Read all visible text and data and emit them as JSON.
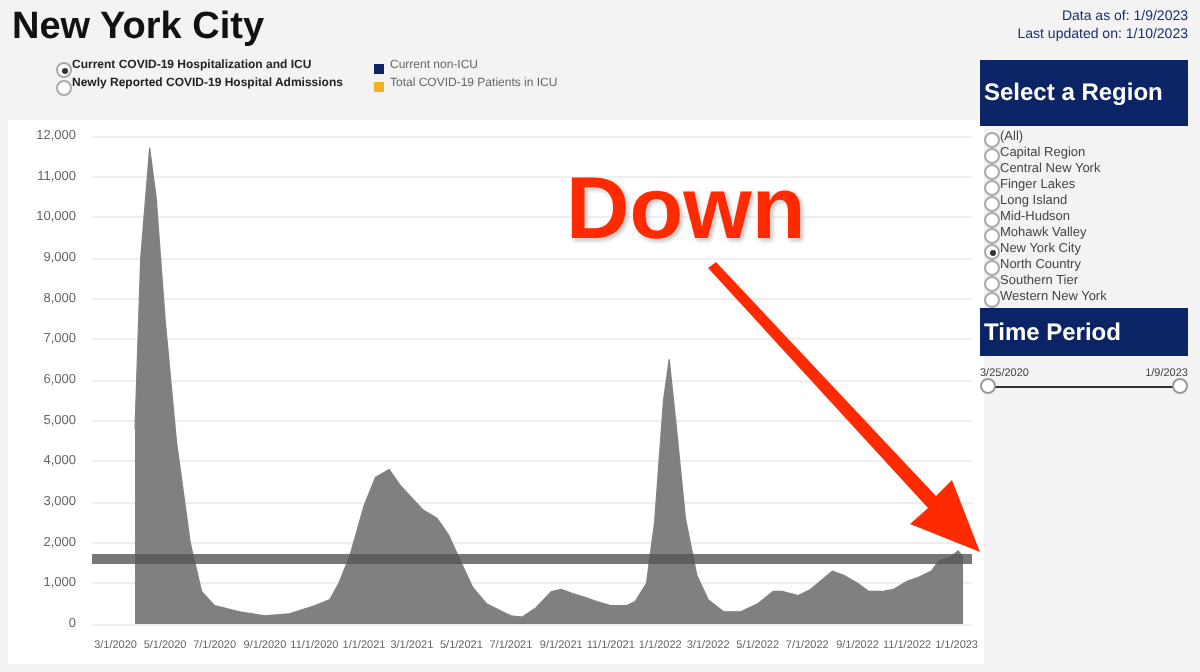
{
  "chart_data": {
    "type": "area",
    "title": "New York City",
    "annotations": [
      "Data as of: 1/9/2023",
      "Last updated on: 1/10/2023",
      "Current COVID-19 Hospitalization and ICU",
      "Newly Reported COVID-19 Hospital Admissions",
      "Current non-ICU",
      "Total COVID-19 Patients in ICU",
      "Select a Region",
      "(All)",
      "Capital Region",
      "Central New York",
      "Finger Lakes",
      "Long Island",
      "Mid-Hudson",
      "Mohawk Valley",
      "New York City",
      "North Country",
      "Southern Tier",
      "Western New York",
      "Time Period",
      "3/25/2020",
      "1/9/2023",
      "Down"
    ],
    "x": [
      "2020-03-25",
      "2020-04-01",
      "2020-04-12",
      "2020-04-20",
      "2020-05-01",
      "2020-05-15",
      "2020-06-01",
      "2020-06-15",
      "2020-07-01",
      "2020-08-01",
      "2020-09-01",
      "2020-10-01",
      "2020-11-01",
      "2020-11-20",
      "2020-12-01",
      "2020-12-15",
      "2021-01-01",
      "2021-01-15",
      "2021-02-01",
      "2021-02-15",
      "2021-03-01",
      "2021-03-15",
      "2021-04-01",
      "2021-04-15",
      "2021-05-01",
      "2021-05-15",
      "2021-06-01",
      "2021-07-01",
      "2021-07-15",
      "2021-08-01",
      "2021-08-20",
      "2021-09-01",
      "2021-09-15",
      "2021-10-01",
      "2021-10-15",
      "2021-11-01",
      "2021-11-20",
      "2021-12-01",
      "2021-12-15",
      "2021-12-25",
      "2022-01-05",
      "2022-01-12",
      "2022-01-20",
      "2022-02-01",
      "2022-02-15",
      "2022-03-01",
      "2022-03-20",
      "2022-04-10",
      "2022-05-01",
      "2022-05-20",
      "2022-06-01",
      "2022-06-20",
      "2022-07-05",
      "2022-07-20",
      "2022-08-01",
      "2022-08-15",
      "2022-09-01",
      "2022-09-15",
      "2022-10-01",
      "2022-10-15",
      "2022-11-01",
      "2022-11-15",
      "2022-12-01",
      "2022-12-10",
      "2022-12-25",
      "2023-01-03",
      "2023-01-09"
    ],
    "series": [
      {
        "color": "#808080",
        "values": [
          4800,
          9000,
          11700,
          10500,
          7500,
          4500,
          2000,
          800,
          450,
          300,
          200,
          250,
          450,
          600,
          1000,
          1700,
          2900,
          3600,
          3800,
          3400,
          3100,
          2800,
          2600,
          2200,
          1500,
          900,
          500,
          200,
          170,
          400,
          800,
          850,
          750,
          650,
          550,
          450,
          450,
          550,
          1000,
          2500,
          5500,
          6500,
          5000,
          2600,
          1200,
          600,
          300,
          300,
          500,
          800,
          800,
          700,
          850,
          1100,
          1300,
          1200,
          1000,
          800,
          800,
          850,
          1050,
          1150,
          1300,
          1550,
          1650,
          1800,
          1650
        ]
      }
    ],
    "xlim": [
      "2020-02-01",
      "2023-01-20"
    ],
    "xticks": [
      {
        "value": "2020-03-01",
        "label": "3/1/2020"
      },
      {
        "value": "2020-05-01",
        "label": "5/1/2020"
      },
      {
        "value": "2020-07-01",
        "label": "7/1/2020"
      },
      {
        "value": "2020-09-01",
        "label": "9/1/2020"
      },
      {
        "value": "2020-11-01",
        "label": "11/1/2020"
      },
      {
        "value": "2021-01-01",
        "label": "1/1/2021"
      },
      {
        "value": "2021-03-01",
        "label": "3/1/2021"
      },
      {
        "value": "2021-05-01",
        "label": "5/1/2021"
      },
      {
        "value": "2021-07-01",
        "label": "7/1/2021"
      },
      {
        "value": "2021-09-01",
        "label": "9/1/2021"
      },
      {
        "value": "2021-11-01",
        "label": "11/1/2021"
      },
      {
        "value": "2022-01-01",
        "label": "1/1/2022"
      },
      {
        "value": "2022-03-01",
        "label": "3/1/2022"
      },
      {
        "value": "2022-05-01",
        "label": "5/1/2022"
      },
      {
        "value": "2022-07-01",
        "label": "7/1/2022"
      },
      {
        "value": "2022-09-01",
        "label": "9/1/2022"
      },
      {
        "value": "2022-11-01",
        "label": "11/1/2022"
      },
      {
        "value": "2023-01-01",
        "label": "1/1/2023"
      }
    ],
    "ylim": [
      0,
      12000
    ],
    "yticks": [
      0,
      {
        "value": 1000,
        "label": "1,000"
      },
      {
        "value": 2000,
        "label": "2,000"
      },
      {
        "value": 3000,
        "label": "3,000"
      },
      {
        "value": 4000,
        "label": "4,000"
      },
      {
        "value": 5000,
        "label": "5,000"
      },
      {
        "value": 6000,
        "label": "6,000"
      },
      {
        "value": 7000,
        "label": "7,000"
      },
      {
        "value": 8000,
        "label": "8,000"
      },
      {
        "value": 9000,
        "label": "9,000"
      },
      {
        "value": 10000,
        "label": "10,000"
      },
      {
        "value": 11000,
        "label": "11,000"
      },
      {
        "value": 12000,
        "label": "12,000"
      }
    ],
    "ref_lines": [
      {
        "axis": "y",
        "value": 1600,
        "color": "#555555"
      }
    ],
    "grid": "y",
    "marker": "none"
  }
}
